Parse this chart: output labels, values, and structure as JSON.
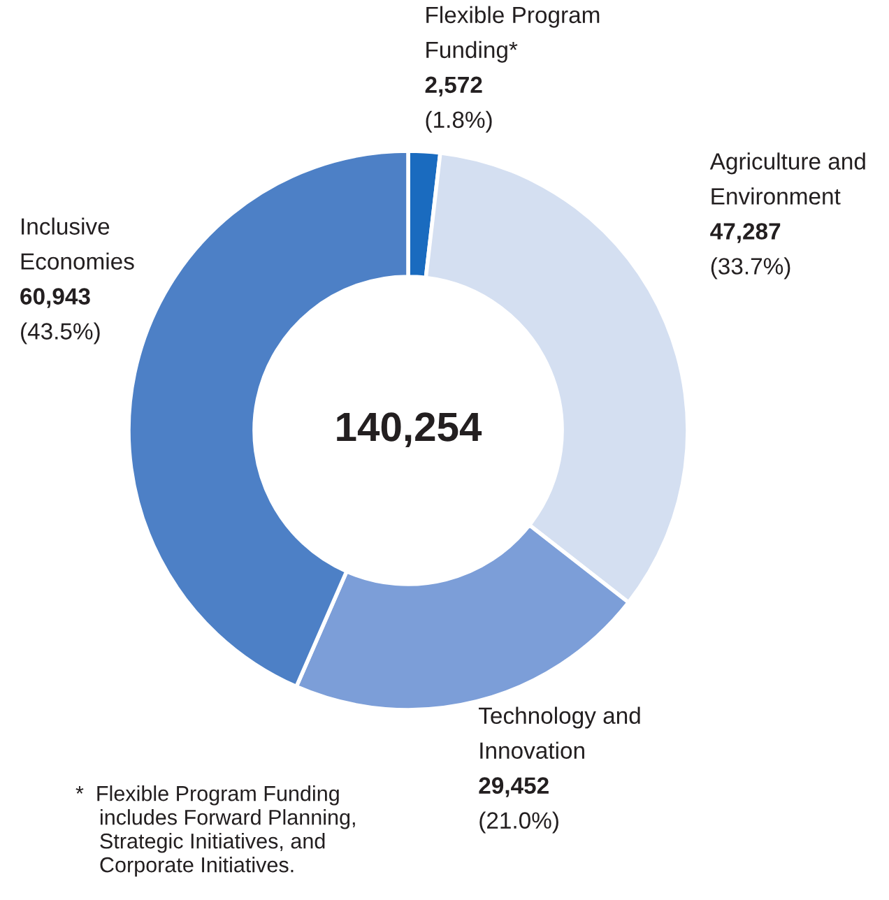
{
  "chart_data": {
    "type": "donut",
    "categories": [
      "Flexible Program\nFunding*",
      "Agriculture and\nEnvironment",
      "Technology and\nInnovation",
      "Inclusive\nEconomies"
    ],
    "values": [
      2572,
      47287,
      29452,
      60943
    ],
    "colors": [
      "#1a6bbf",
      "#d4dff1",
      "#7c9ed8",
      "#4d80c6"
    ],
    "value_labels": [
      "2,572\n(1.8%)",
      "47,287\n(33.7%)",
      "29,452\n(21.0%)",
      "60,943\n(43.5%)"
    ],
    "annotations": [
      "140,254",
      "*  Flexible Program Funding\n    includes Forward Planning,\n    Strategic Initiatives, and\n    Corporate Initiatives."
    ]
  }
}
